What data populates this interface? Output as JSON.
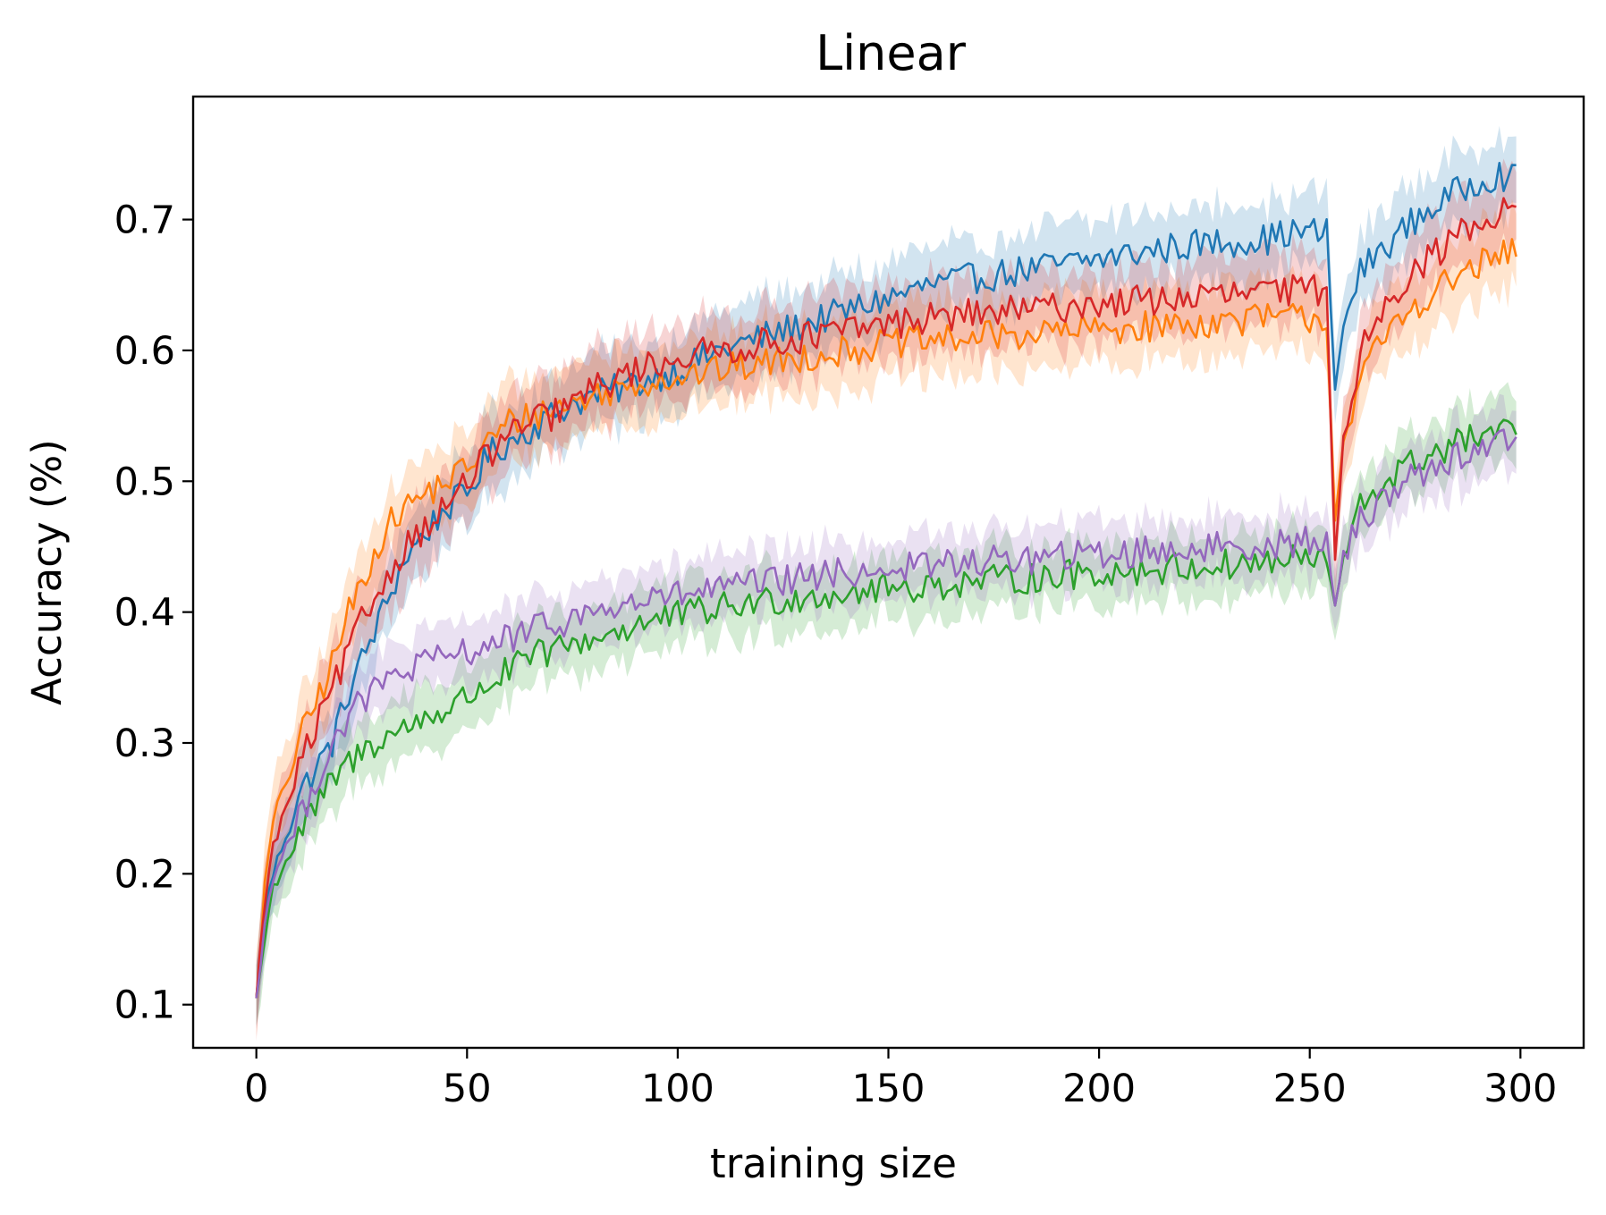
{
  "chart_data": {
    "type": "line",
    "title": "Linear",
    "xlabel": "training size",
    "ylabel": "Accuracy (%)",
    "xlim": [
      -15,
      315
    ],
    "ylim": [
      0.067,
      0.794
    ],
    "xticks": [
      0,
      50,
      100,
      150,
      200,
      250,
      300
    ],
    "yticks": [
      0.1,
      0.2,
      0.3,
      0.4,
      0.5,
      0.6,
      0.7
    ],
    "xtick_labels": [
      "0",
      "50",
      "100",
      "150",
      "200",
      "250",
      "300"
    ],
    "ytick_labels": [
      "0.1",
      "0.2",
      "0.3",
      "0.4",
      "0.5",
      "0.6",
      "0.7"
    ],
    "grid": false,
    "legend": "none",
    "shaded_band": "variability band around each line",
    "series": [
      {
        "color": "#1f77b4",
        "band_width": 0.035,
        "x": [
          0,
          2,
          4,
          7,
          10,
          14,
          18,
          22,
          26,
          30,
          35,
          40,
          45,
          50,
          55,
          60,
          65,
          70,
          75,
          80,
          90,
          100,
          110,
          120,
          130,
          140,
          150,
          160,
          170,
          180,
          190,
          200,
          210,
          220,
          230,
          240,
          245,
          250,
          254,
          256,
          258,
          262,
          268,
          275,
          282,
          290,
          295,
          299
        ],
        "y": [
          0.105,
          0.17,
          0.2,
          0.23,
          0.26,
          0.28,
          0.3,
          0.34,
          0.37,
          0.4,
          0.44,
          0.46,
          0.48,
          0.49,
          0.52,
          0.53,
          0.54,
          0.55,
          0.56,
          0.565,
          0.575,
          0.585,
          0.6,
          0.61,
          0.62,
          0.63,
          0.64,
          0.65,
          0.655,
          0.66,
          0.665,
          0.67,
          0.675,
          0.68,
          0.683,
          0.685,
          0.69,
          0.69,
          0.69,
          0.57,
          0.62,
          0.66,
          0.68,
          0.7,
          0.715,
          0.73,
          0.735,
          0.73
        ]
      },
      {
        "color": "#ff7f0e",
        "band_width": 0.035,
        "x": [
          0,
          2,
          4,
          7,
          10,
          14,
          18,
          22,
          26,
          30,
          35,
          40,
          45,
          50,
          55,
          60,
          65,
          70,
          75,
          80,
          90,
          100,
          110,
          120,
          130,
          140,
          150,
          160,
          170,
          180,
          190,
          200,
          210,
          220,
          230,
          240,
          245,
          250,
          254,
          256,
          258,
          262,
          268,
          275,
          282,
          290,
          295,
          299
        ],
        "y": [
          0.105,
          0.19,
          0.24,
          0.27,
          0.3,
          0.33,
          0.36,
          0.4,
          0.43,
          0.46,
          0.48,
          0.49,
          0.5,
          0.51,
          0.53,
          0.545,
          0.55,
          0.555,
          0.56,
          0.565,
          0.575,
          0.58,
          0.585,
          0.59,
          0.595,
          0.6,
          0.605,
          0.607,
          0.61,
          0.612,
          0.614,
          0.616,
          0.618,
          0.62,
          0.622,
          0.625,
          0.625,
          0.625,
          0.625,
          0.47,
          0.53,
          0.58,
          0.61,
          0.635,
          0.65,
          0.665,
          0.67,
          0.68
        ]
      },
      {
        "color": "#2ca02c",
        "band_width": 0.03,
        "x": [
          0,
          2,
          4,
          7,
          10,
          14,
          18,
          22,
          26,
          30,
          35,
          40,
          45,
          50,
          55,
          60,
          65,
          70,
          75,
          80,
          90,
          100,
          110,
          120,
          130,
          140,
          150,
          160,
          170,
          180,
          190,
          200,
          210,
          220,
          230,
          240,
          245,
          250,
          254,
          256,
          258,
          262,
          268,
          275,
          282,
          290,
          295,
          299
        ],
        "y": [
          0.105,
          0.15,
          0.19,
          0.21,
          0.23,
          0.25,
          0.27,
          0.285,
          0.295,
          0.305,
          0.31,
          0.32,
          0.325,
          0.335,
          0.345,
          0.355,
          0.365,
          0.37,
          0.375,
          0.38,
          0.39,
          0.397,
          0.403,
          0.408,
          0.412,
          0.415,
          0.418,
          0.42,
          0.423,
          0.425,
          0.428,
          0.43,
          0.432,
          0.434,
          0.436,
          0.438,
          0.44,
          0.44,
          0.44,
          0.405,
          0.44,
          0.48,
          0.5,
          0.515,
          0.525,
          0.535,
          0.535,
          0.54
        ]
      },
      {
        "color": "#d62728",
        "band_width": 0.035,
        "x": [
          0,
          2,
          4,
          7,
          10,
          14,
          18,
          22,
          26,
          30,
          35,
          40,
          45,
          50,
          55,
          60,
          65,
          70,
          75,
          80,
          90,
          100,
          110,
          120,
          130,
          140,
          150,
          160,
          170,
          180,
          190,
          200,
          210,
          220,
          230,
          240,
          245,
          250,
          254,
          256,
          258,
          262,
          268,
          275,
          282,
          290,
          295,
          299
        ],
        "y": [
          0.105,
          0.18,
          0.22,
          0.25,
          0.28,
          0.31,
          0.34,
          0.37,
          0.4,
          0.42,
          0.45,
          0.465,
          0.48,
          0.5,
          0.52,
          0.535,
          0.545,
          0.55,
          0.56,
          0.57,
          0.585,
          0.595,
          0.6,
          0.605,
          0.61,
          0.615,
          0.62,
          0.625,
          0.628,
          0.63,
          0.633,
          0.636,
          0.638,
          0.64,
          0.642,
          0.645,
          0.645,
          0.647,
          0.645,
          0.44,
          0.53,
          0.6,
          0.64,
          0.66,
          0.68,
          0.7,
          0.705,
          0.71
        ]
      },
      {
        "color": "#9467bd",
        "band_width": 0.03,
        "x": [
          0,
          2,
          4,
          7,
          10,
          14,
          18,
          22,
          26,
          30,
          35,
          40,
          45,
          50,
          55,
          60,
          65,
          70,
          75,
          80,
          90,
          100,
          110,
          120,
          130,
          140,
          150,
          160,
          170,
          180,
          190,
          200,
          210,
          220,
          230,
          240,
          245,
          250,
          254,
          256,
          258,
          262,
          268,
          275,
          282,
          290,
          295,
          299
        ],
        "y": [
          0.105,
          0.16,
          0.2,
          0.22,
          0.24,
          0.27,
          0.3,
          0.32,
          0.335,
          0.345,
          0.355,
          0.36,
          0.365,
          0.37,
          0.375,
          0.38,
          0.385,
          0.39,
          0.395,
          0.4,
          0.407,
          0.413,
          0.418,
          0.422,
          0.426,
          0.43,
          0.433,
          0.436,
          0.438,
          0.44,
          0.442,
          0.444,
          0.446,
          0.448,
          0.45,
          0.452,
          0.453,
          0.454,
          0.452,
          0.405,
          0.44,
          0.47,
          0.49,
          0.505,
          0.515,
          0.525,
          0.53,
          0.53
        ]
      }
    ]
  }
}
